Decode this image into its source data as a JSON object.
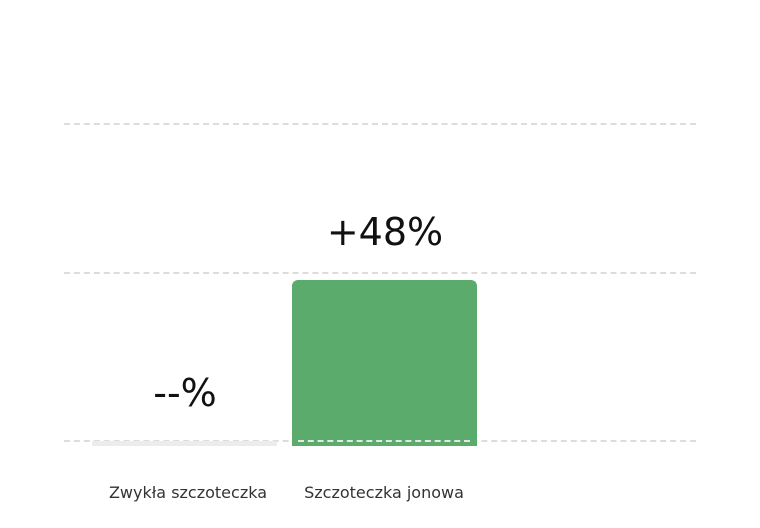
{
  "chart_data": {
    "type": "bar",
    "categories": [
      "Zwykła szczoteczka",
      "Szczoteczka jonowa"
    ],
    "values": [
      0,
      48
    ],
    "value_labels": [
      "--%",
      "+48%"
    ],
    "colors": [
      "#ececec",
      "#5bab6c"
    ],
    "grid": true,
    "legend": "none"
  }
}
